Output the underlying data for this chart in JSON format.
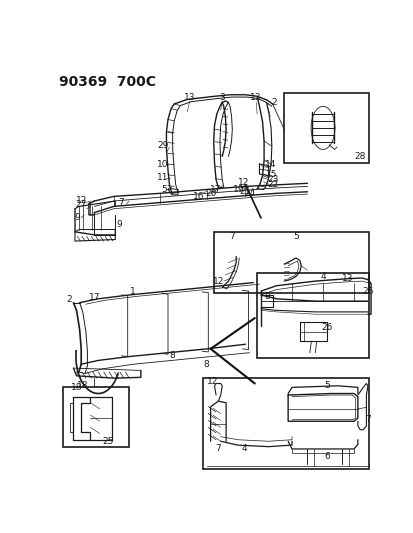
{
  "title": "90369  700C",
  "bg_color": "#ffffff",
  "line_color": "#1a1a1a",
  "title_fontsize": 10,
  "label_fontsize": 6.5,
  "fig_width": 4.14,
  "fig_height": 5.33,
  "dpi": 100
}
